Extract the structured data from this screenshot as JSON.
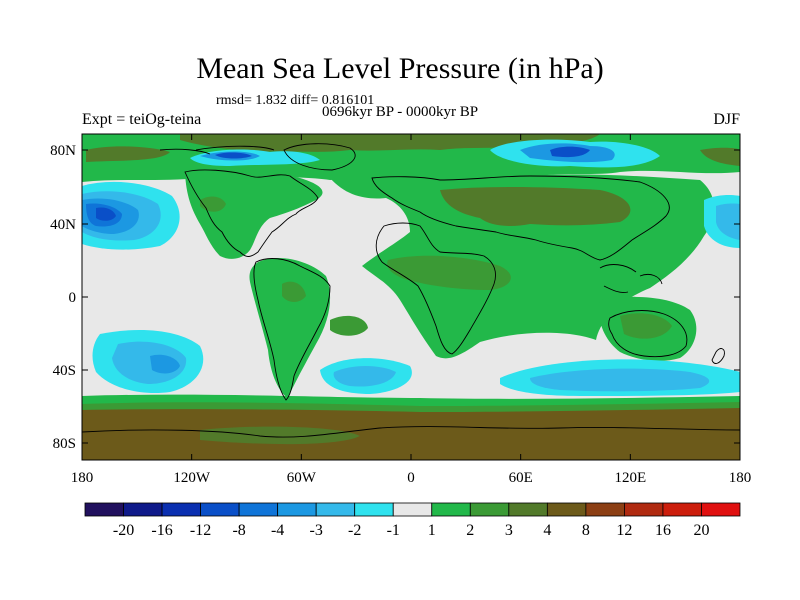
{
  "plot": {
    "title": "Mean Sea Level Pressure (in hPa)",
    "stats": "rmsd= 1.832 diff= 0.816101",
    "period": "0696kyr BP - 0000kyr BP",
    "experiment": "Expt = teiOg-teina",
    "season": "DJF"
  },
  "axes": {
    "lat_ticks": [
      "80N",
      "40N",
      "0",
      "40S",
      "80S"
    ],
    "lon_ticks": [
      "180",
      "120W",
      "60W",
      "0",
      "60E",
      "120E",
      "180"
    ]
  },
  "colorbar": {
    "levels": [
      "-20",
      "-16",
      "-12",
      "-8",
      "-4",
      "-3",
      "-2",
      "-1",
      "1",
      "2",
      "3",
      "4",
      "8",
      "12",
      "16",
      "20"
    ],
    "colors": [
      "#21105e",
      "#0f1a8a",
      "#0a2fb0",
      "#0a4fc8",
      "#0f74d8",
      "#1c98e2",
      "#34b9ea",
      "#2fe2ee",
      "#e8e8e8",
      "#22b84a",
      "#3b9a35",
      "#527a2a",
      "#6c5a1a",
      "#8c3f14",
      "#b02a10",
      "#cc1e0c",
      "#e01010"
    ]
  }
}
